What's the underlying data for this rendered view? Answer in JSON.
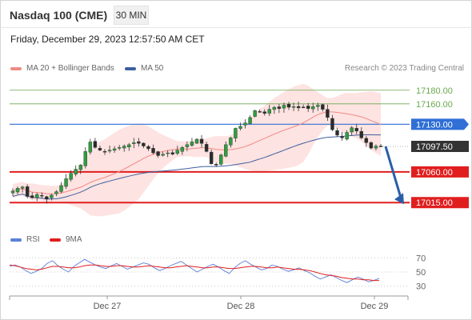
{
  "header": {
    "title": "Nasdaq 100 (CME)",
    "timeframe": "30 MIN",
    "datetime": "Friday, December 29, 2023 12:57:50 AM CET"
  },
  "legend": {
    "items": [
      {
        "label": "MA 20 + Bollinger Bands",
        "color": "#f08a86"
      },
      {
        "label": "MA 50",
        "color": "#3e5f9e"
      }
    ],
    "credit": "Research © 2023 Trading Central"
  },
  "rsi_legend": {
    "items": [
      {
        "label": "RSI",
        "color": "#5b7fd6"
      },
      {
        "label": "9MA",
        "color": "#e01e1e"
      }
    ]
  },
  "chart_data": [
    {
      "type": "candlestick",
      "series_legend": [
        "MA 20 + Bollinger Bands",
        "MA 50"
      ],
      "ylim": [
        16980,
        17195
      ],
      "price_levels": [
        {
          "value": 17180.0,
          "label": "17180.00",
          "style": "resistance-thin",
          "color": "#6aa84f"
        },
        {
          "value": 17160.0,
          "label": "17160.00",
          "style": "resistance-thin",
          "color": "#6aa84f"
        },
        {
          "value": 17130.0,
          "label": "17130.00",
          "style": "pivot",
          "color": "#2f6fd6"
        },
        {
          "value": 17097.5,
          "label": "17097.50",
          "style": "last",
          "color": "#333333"
        },
        {
          "value": 17060.0,
          "label": "17060.00",
          "style": "support",
          "color": "#e01e1e"
        },
        {
          "value": 17015.0,
          "label": "17015.00",
          "style": "support",
          "color": "#e01e1e"
        }
      ],
      "close_path": [
        17032,
        17036,
        17038,
        17024,
        17022,
        17027,
        17025,
        17020,
        17026,
        17031,
        17040,
        17050,
        17058,
        17064,
        17070,
        17090,
        17104,
        17096,
        17092,
        17090,
        17092,
        17094,
        17096,
        17098,
        17100,
        17103,
        17102,
        17098,
        17094,
        17088,
        17084,
        17086,
        17088,
        17086,
        17092,
        17096,
        17100,
        17104,
        17108,
        17102,
        17090,
        17072,
        17070,
        17085,
        17100,
        17110,
        17124,
        17127,
        17132,
        17140,
        17150,
        17148,
        17146,
        17152,
        17155,
        17153,
        17158,
        17155,
        17156,
        17154,
        17155,
        17153,
        17156,
        17158,
        17152,
        17140,
        17122,
        17114,
        17110,
        17118,
        17125,
        17120,
        17110,
        17103,
        17095,
        17098,
        17097.5
      ],
      "forecast": {
        "from": 17097.5,
        "to": 17015.0
      }
    },
    {
      "type": "line",
      "title": "RSI",
      "series": [
        {
          "name": "RSI",
          "values": [
            58,
            60,
            57,
            52,
            48,
            51,
            55,
            62,
            66,
            59,
            54,
            50,
            58,
            63,
            68,
            64,
            60,
            57,
            55,
            59,
            62,
            58,
            54,
            57,
            60,
            63,
            61,
            56,
            52,
            55,
            59,
            62,
            65,
            60,
            55,
            50,
            54,
            58,
            61,
            57,
            52,
            48,
            56,
            62,
            66,
            61,
            57,
            53,
            55,
            60,
            58,
            54,
            51,
            53,
            56,
            52,
            49,
            44,
            40,
            43,
            46,
            42,
            38,
            35,
            39,
            43,
            40,
            36,
            38,
            41
          ]
        },
        {
          "name": "9MA",
          "values": [
            60,
            59,
            57,
            55,
            54,
            53,
            54,
            56,
            58,
            58,
            57,
            56,
            56,
            57,
            59,
            60,
            60,
            59,
            58,
            58,
            59,
            59,
            58,
            57,
            57,
            58,
            59,
            58,
            57,
            56,
            56,
            57,
            58,
            59,
            58,
            57,
            56,
            56,
            57,
            57,
            56,
            55,
            55,
            56,
            57,
            58,
            58,
            57,
            56,
            56,
            57,
            56,
            55,
            54,
            54,
            53,
            52,
            50,
            48,
            46,
            45,
            44,
            42,
            41,
            40,
            40,
            39,
            39,
            38,
            38
          ]
        }
      ],
      "yticks": [
        70,
        50,
        30
      ],
      "ylim": [
        20,
        80
      ]
    }
  ],
  "x_axis": {
    "tick_labels": [
      "Dec 27",
      "Dec 28",
      "Dec 29"
    ]
  }
}
